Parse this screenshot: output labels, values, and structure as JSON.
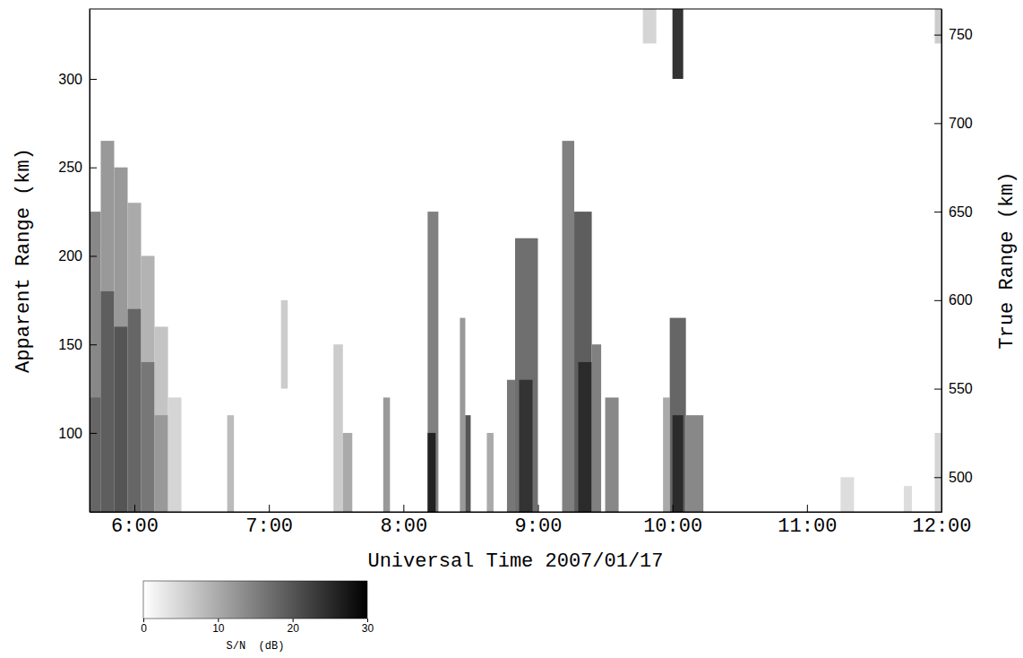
{
  "chart_data": {
    "type": "heatmap",
    "x_label": "Universal Time 2007/01/17",
    "y_label": "Apparent Range (km)",
    "y2_label": "True Range (km)",
    "xlim": [
      5.667,
      12.0
    ],
    "xticks": [
      {
        "value": 6,
        "label": "6:00"
      },
      {
        "value": 7,
        "label": "7:00"
      },
      {
        "value": 8,
        "label": "8:00"
      },
      {
        "value": 9,
        "label": "9:00"
      },
      {
        "value": 10,
        "label": "10:00"
      },
      {
        "value": 11,
        "label": "11:00"
      },
      {
        "value": 12,
        "label": "12:00"
      }
    ],
    "ylim": [
      55.4,
      339.5
    ],
    "yticks": [
      100,
      150,
      200,
      250,
      300
    ],
    "y2lim": [
      480.4,
      764.5
    ],
    "y2ticks": [
      500,
      550,
      600,
      650,
      700,
      750
    ],
    "colorbar": {
      "label": "S/N  (dB)",
      "range": [
        0,
        30
      ],
      "ticks": [
        0,
        10,
        20,
        30
      ]
    },
    "cells": [
      {
        "t": [
          5.667,
          5.75
        ],
        "r": [
          55.4,
          225
        ],
        "snr": 14
      },
      {
        "t": [
          5.667,
          5.75
        ],
        "r": [
          55.4,
          120
        ],
        "snr": 18
      },
      {
        "t": [
          5.75,
          5.85
        ],
        "r": [
          55.4,
          265
        ],
        "snr": 12
      },
      {
        "t": [
          5.75,
          5.85
        ],
        "r": [
          55.4,
          180
        ],
        "snr": 19
      },
      {
        "t": [
          5.85,
          5.95
        ],
        "r": [
          55.4,
          250
        ],
        "snr": 12
      },
      {
        "t": [
          5.85,
          5.95
        ],
        "r": [
          55.4,
          160
        ],
        "snr": 20
      },
      {
        "t": [
          5.95,
          6.05
        ],
        "r": [
          55.4,
          230
        ],
        "snr": 10
      },
      {
        "t": [
          5.95,
          6.05
        ],
        "r": [
          55.4,
          170
        ],
        "snr": 18
      },
      {
        "t": [
          6.05,
          6.15
        ],
        "r": [
          55.4,
          200
        ],
        "snr": 9
      },
      {
        "t": [
          6.05,
          6.15
        ],
        "r": [
          55.4,
          140
        ],
        "snr": 16
      },
      {
        "t": [
          6.15,
          6.25
        ],
        "r": [
          55.4,
          160
        ],
        "snr": 7
      },
      {
        "t": [
          6.15,
          6.25
        ],
        "r": [
          55.4,
          110
        ],
        "snr": 12
      },
      {
        "t": [
          6.25,
          6.35
        ],
        "r": [
          55.4,
          120
        ],
        "snr": 5
      },
      {
        "t": [
          6.69,
          6.74
        ],
        "r": [
          55.4,
          110
        ],
        "snr": 8
      },
      {
        "t": [
          7.09,
          7.14
        ],
        "r": [
          125,
          175
        ],
        "snr": 6
      },
      {
        "t": [
          7.48,
          7.55
        ],
        "r": [
          55.4,
          150
        ],
        "snr": 6
      },
      {
        "t": [
          7.55,
          7.62
        ],
        "r": [
          55.4,
          100
        ],
        "snr": 10
      },
      {
        "t": [
          7.85,
          7.9
        ],
        "r": [
          55.4,
          120
        ],
        "snr": 12
      },
      {
        "t": [
          8.18,
          8.26
        ],
        "r": [
          55.4,
          225
        ],
        "snr": 15
      },
      {
        "t": [
          8.18,
          8.24
        ],
        "r": [
          55.4,
          100
        ],
        "snr": 26
      },
      {
        "t": [
          8.42,
          8.46
        ],
        "r": [
          55.4,
          165
        ],
        "snr": 12
      },
      {
        "t": [
          8.46,
          8.5
        ],
        "r": [
          55.4,
          110
        ],
        "snr": 20
      },
      {
        "t": [
          8.62,
          8.67
        ],
        "r": [
          55.4,
          100
        ],
        "snr": 10
      },
      {
        "t": [
          8.77,
          8.83
        ],
        "r": [
          55.4,
          130
        ],
        "snr": 16
      },
      {
        "t": [
          8.83,
          9.0
        ],
        "r": [
          55.4,
          210
        ],
        "snr": 17
      },
      {
        "t": [
          8.86,
          8.96
        ],
        "r": [
          55.4,
          130
        ],
        "snr": 24
      },
      {
        "t": [
          9.18,
          9.27
        ],
        "r": [
          55.4,
          265
        ],
        "snr": 15
      },
      {
        "t": [
          9.27,
          9.4
        ],
        "r": [
          55.4,
          225
        ],
        "snr": 19
      },
      {
        "t": [
          9.3,
          9.4
        ],
        "r": [
          55.4,
          140
        ],
        "snr": 25
      },
      {
        "t": [
          9.4,
          9.47
        ],
        "r": [
          55.4,
          150
        ],
        "snr": 15
      },
      {
        "t": [
          9.5,
          9.6
        ],
        "r": [
          55.4,
          120
        ],
        "snr": 14
      },
      {
        "t": [
          9.93,
          9.98
        ],
        "r": [
          55.4,
          120
        ],
        "snr": 10
      },
      {
        "t": [
          9.98,
          10.1
        ],
        "r": [
          55.4,
          165
        ],
        "snr": 18
      },
      {
        "t": [
          10.0,
          10.08
        ],
        "r": [
          55.4,
          110
        ],
        "snr": 25
      },
      {
        "t": [
          10.1,
          10.23
        ],
        "r": [
          55.4,
          110
        ],
        "snr": 14
      },
      {
        "t": [
          10.0,
          10.08
        ],
        "r": [
          300,
          339.5
        ],
        "snr": 24
      },
      {
        "t": [
          9.78,
          9.88
        ],
        "r": [
          320,
          339.5
        ],
        "snr": 5
      },
      {
        "t": [
          11.25,
          11.35
        ],
        "r": [
          55.4,
          75
        ],
        "snr": 4
      },
      {
        "t": [
          11.72,
          11.78
        ],
        "r": [
          55.4,
          70
        ],
        "snr": 4
      },
      {
        "t": [
          11.95,
          12.0
        ],
        "r": [
          55.4,
          100
        ],
        "snr": 5
      },
      {
        "t": [
          11.95,
          12.0
        ],
        "r": [
          320,
          339.5
        ],
        "snr": 6
      }
    ]
  }
}
